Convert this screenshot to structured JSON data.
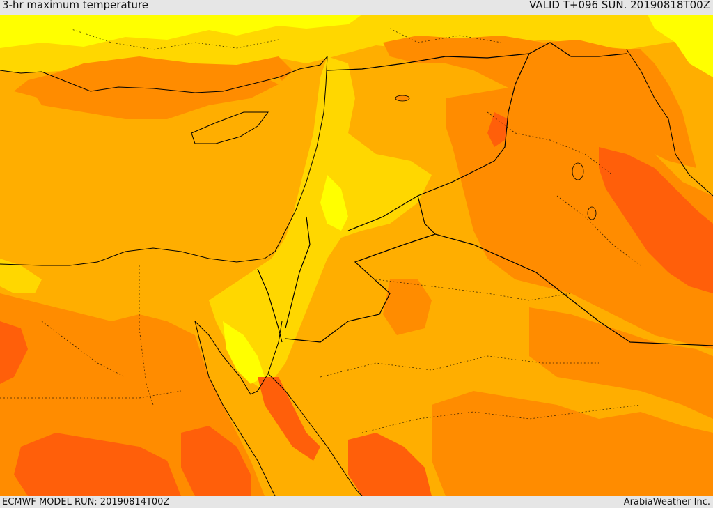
{
  "header": {
    "title": "3-hr maximum temperature",
    "valid": "VALID T+096 SUN. 20190818T00Z"
  },
  "footer": {
    "model_run": "ECMWF MODEL RUN: 20190814T00Z",
    "credit": "ArabiaWeather Inc."
  },
  "colors": {
    "background": "#e6e6e6",
    "light_yellow": "#ffff00",
    "yellow": "#ffd700",
    "light_orange": "#ffae00",
    "orange": "#ff8c00",
    "dark_orange": "#ff5f0a",
    "border": "#000000"
  }
}
